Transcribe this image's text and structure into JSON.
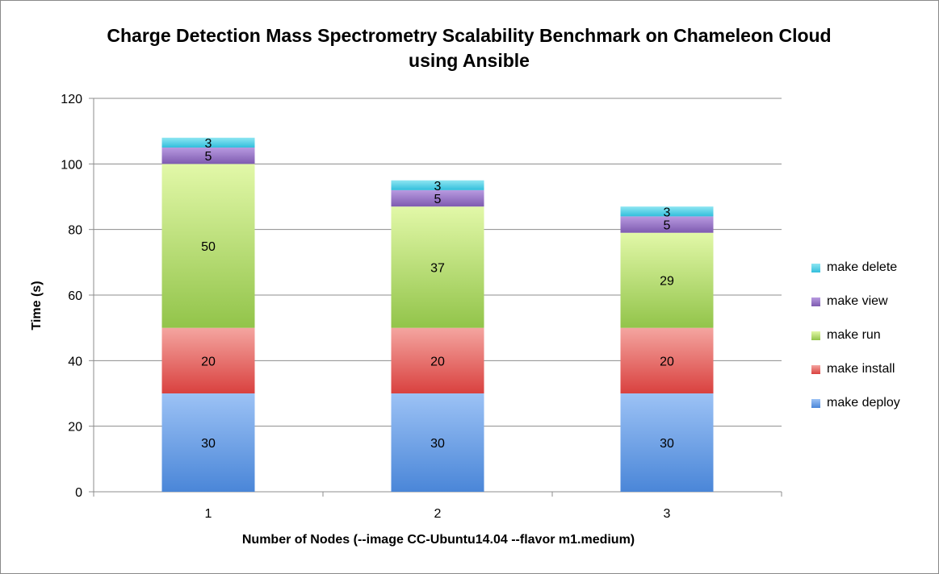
{
  "chart_data": {
    "type": "bar",
    "stacked": true,
    "title": "Charge Detection Mass Spectrometry Scalability Benchmark on Chameleon Cloud using Ansible",
    "xlabel": "Number of Nodes (--image CC-Ubuntu14.04 --flavor m1.medium)",
    "ylabel": "Time (s)",
    "categories": [
      "1",
      "2",
      "3"
    ],
    "ylim": [
      0,
      120
    ],
    "yticks": [
      "0",
      "20",
      "40",
      "60",
      "80",
      "100",
      "120"
    ],
    "grid": true,
    "legend_position": "right",
    "series": [
      {
        "name": "make deploy",
        "values": [
          30,
          30,
          30
        ],
        "color": "#4a86d8",
        "color_light": "#9cc2f5"
      },
      {
        "name": "make install",
        "values": [
          20,
          20,
          20
        ],
        "color": "#d9413f",
        "color_light": "#f4a5a0"
      },
      {
        "name": "make run",
        "values": [
          50,
          37,
          29
        ],
        "color": "#92c44a",
        "color_light": "#e2f8a8"
      },
      {
        "name": "make view",
        "values": [
          5,
          5,
          5
        ],
        "color": "#7e5bb0",
        "color_light": "#b89ae0"
      },
      {
        "name": "make delete",
        "values": [
          3,
          3,
          3
        ],
        "color": "#32bedc",
        "color_light": "#8ee6f2"
      }
    ]
  }
}
